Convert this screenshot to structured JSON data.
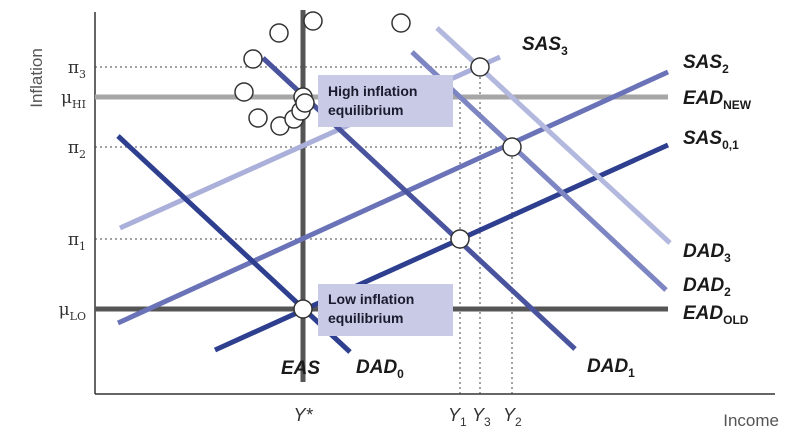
{
  "axes": {
    "y_title": "Inflation",
    "x_title": "Income"
  },
  "y_ticks": [
    {
      "base": "π",
      "sub": "3"
    },
    {
      "base": "μ",
      "sub": "HI"
    },
    {
      "base": "π",
      "sub": "2"
    },
    {
      "base": "π",
      "sub": "1"
    },
    {
      "base": "μ",
      "sub": "LO"
    }
  ],
  "x_ticks": {
    "ystar": "Y*",
    "y1": {
      "base": "Y",
      "sub": "1"
    },
    "y3": {
      "base": "Y",
      "sub": "3"
    },
    "y2": {
      "base": "Y",
      "sub": "2"
    }
  },
  "labels": {
    "sas3": {
      "base": "SAS",
      "sub": "3"
    },
    "sas2": {
      "base": "SAS",
      "sub": "2"
    },
    "ead_new": {
      "base": "EAD",
      "sub": "NEW"
    },
    "sas01": {
      "base": "SAS",
      "sub": "0,1"
    },
    "dad3": {
      "base": "DAD",
      "sub": "3"
    },
    "dad2": {
      "base": "DAD",
      "sub": "2"
    },
    "ead_old": {
      "base": "EAD",
      "sub": "OLD"
    },
    "dad1": {
      "base": "DAD",
      "sub": "1"
    },
    "dad0": {
      "base": "DAD",
      "sub": "0"
    },
    "eas": "EAS"
  },
  "boxes": {
    "high": [
      "High inflation",
      "equilibrium"
    ],
    "low": [
      "Low inflation",
      "equilibrium"
    ]
  },
  "colors": {
    "sas01": "#2e3f8f",
    "dad0": "#2e3f8f",
    "sas2": "#6b73b8",
    "dad1": "#4a549e",
    "dad2": "#7d85c2",
    "dad3": "#b3b8de",
    "sas3": "#aab0da",
    "ead_old": "#555555",
    "ead_new": "#a6a6a6",
    "eas": "#555555",
    "box_fill": "#c9cbe6"
  }
}
